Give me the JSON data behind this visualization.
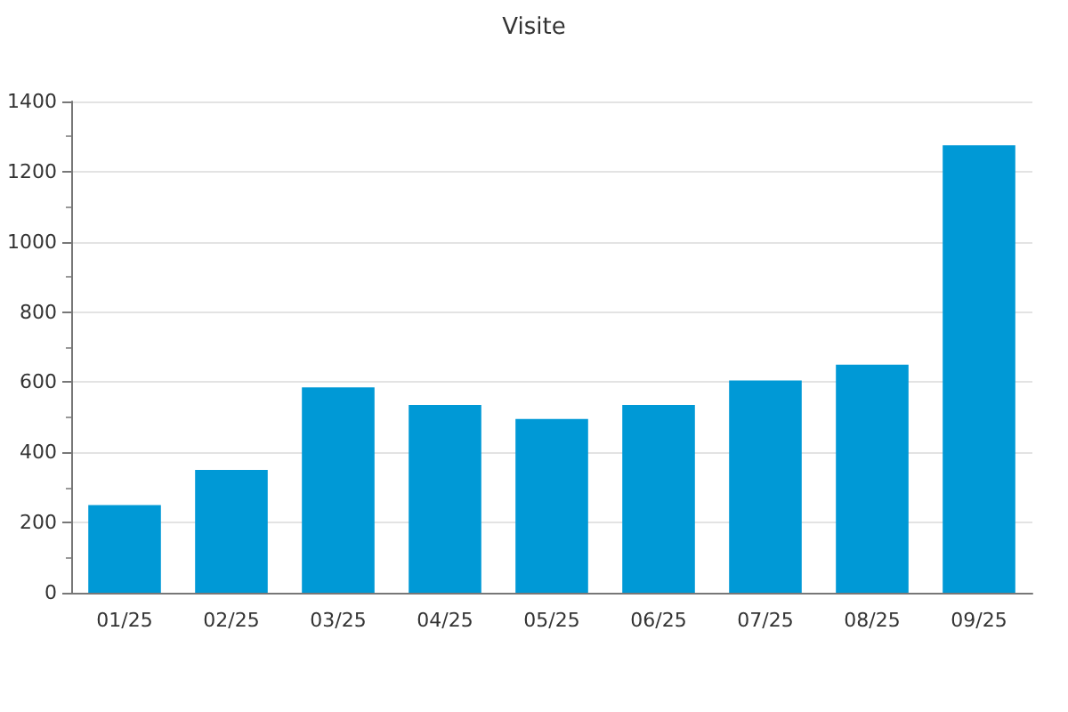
{
  "chart_data": {
    "type": "bar",
    "title": "Visite",
    "categories": [
      "01/25",
      "02/25",
      "03/25",
      "04/25",
      "05/25",
      "06/25",
      "07/25",
      "08/25",
      "09/25"
    ],
    "values": [
      250,
      350,
      585,
      535,
      495,
      535,
      605,
      650,
      1275
    ],
    "color": "#0099d6",
    "ylim": [
      0,
      1400
    ],
    "yticks": [
      0,
      200,
      400,
      600,
      800,
      1000,
      1200,
      1400
    ],
    "grid": "y"
  }
}
